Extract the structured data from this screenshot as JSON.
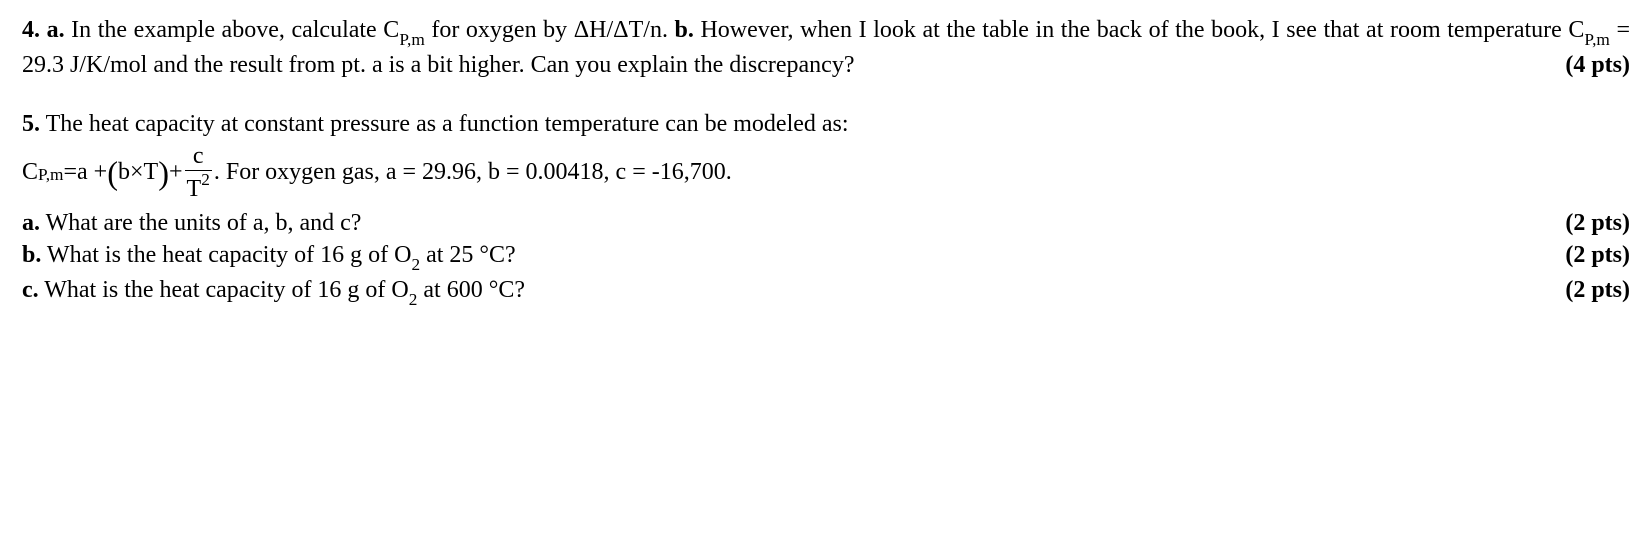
{
  "q4": {
    "num": "4.",
    "partA": "a.",
    "textA": " In the example above, calculate C",
    "sub1": "P,m",
    "textA2": " for oxygen by ΔH/ΔT/n. ",
    "partB": "b.",
    "textB": " However, when I look at the table in the back of the book, I see that at room temperature C",
    "sub2": "P,m",
    "textB2": " = 29.3 J/K/mol and the result from pt. a is a bit higher. Can you explain the discrepancy?",
    "pts": "(4 pts)"
  },
  "q5": {
    "num": "5.",
    "intro": " The heat capacity at constant pressure as a function temperature can be modeled as:",
    "formula": {
      "lhs_C": "C",
      "lhs_sub": "P,m",
      "eq": " = ",
      "a": " a +",
      "lparen": "(",
      "bT": "b×T",
      "rparen": ")",
      "plus": "+ ",
      "num": "c",
      "den_T": "T",
      "den_sup": "2",
      "after": ". For oxygen gas, a = 29.96, b = 0.00418, c = -16,700."
    },
    "a": {
      "label": "a.",
      "text": " What are the units of a, b, and c?",
      "pts": "(2 pts)"
    },
    "b": {
      "label": "b.",
      "text1": " What is the heat capacity of 16 g of O",
      "sub": "2",
      "text2": " at 25 °C?",
      "pts": "(2 pts)"
    },
    "c": {
      "label": "c.",
      "text1": " What is the heat capacity of 16 g of O",
      "sub": "2",
      "text2": " at 600 °C?",
      "pts": "(2 pts)"
    }
  }
}
